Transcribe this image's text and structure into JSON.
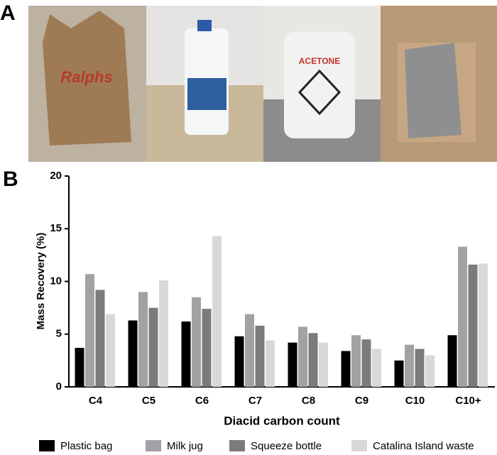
{
  "panels": {
    "a": "A",
    "b": "B"
  },
  "photos": {
    "bag_text": "Ralphs",
    "bottle_text": "ACETONE"
  },
  "chart_data": {
    "type": "bar",
    "ylabel": "Mass Recovery (%)",
    "xlabel": "Diacid carbon count",
    "categories": [
      "C4",
      "C5",
      "C6",
      "C7",
      "C8",
      "C9",
      "C10",
      "C10+"
    ],
    "series": [
      {
        "name": "Plastic bag",
        "color": "#000000",
        "values": [
          3.7,
          6.3,
          6.2,
          4.8,
          4.2,
          3.4,
          2.5,
          4.9
        ]
      },
      {
        "name": "Milk jug",
        "color": "#a2a2a6",
        "values": [
          10.7,
          9.0,
          8.5,
          6.9,
          5.7,
          4.9,
          4.0,
          13.3
        ]
      },
      {
        "name": "Squeeze bottle",
        "color": "#7b7b7b",
        "values": [
          9.2,
          7.5,
          7.4,
          5.8,
          5.1,
          4.5,
          3.6,
          11.6
        ]
      },
      {
        "name": "Catalina Island waste",
        "color": "#d8d8d8",
        "values": [
          6.9,
          10.1,
          14.3,
          4.4,
          4.2,
          3.6,
          3.0,
          11.7
        ]
      }
    ],
    "ylim": [
      0,
      20
    ],
    "yticks": [
      0,
      5,
      10,
      15,
      20
    ]
  }
}
